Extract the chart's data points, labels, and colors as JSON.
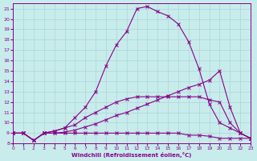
{
  "background_color": "#c8ecec",
  "grid_color": "#b0d8d8",
  "line_color": "#880088",
  "xlabel": "Windchill (Refroidissement éolien,°C)",
  "xlim": [
    0,
    23
  ],
  "ylim": [
    8,
    21.5
  ],
  "yticks": [
    8,
    9,
    10,
    11,
    12,
    13,
    14,
    15,
    16,
    17,
    18,
    19,
    20,
    21
  ],
  "xticks": [
    0,
    1,
    2,
    3,
    4,
    5,
    6,
    7,
    8,
    9,
    10,
    11,
    12,
    13,
    14,
    15,
    16,
    17,
    18,
    19,
    20,
    21,
    22,
    23
  ],
  "series": [
    {
      "x": [
        0,
        1,
        2,
        3,
        4,
        5,
        6,
        7,
        8,
        9,
        10,
        11,
        12,
        13,
        14,
        15,
        16,
        17,
        18,
        19,
        20,
        21,
        22,
        23
      ],
      "y": [
        9.0,
        9.0,
        8.3,
        9.0,
        9.0,
        9.0,
        9.0,
        9.0,
        9.0,
        9.0,
        9.0,
        9.0,
        9.0,
        9.0,
        9.0,
        9.0,
        9.0,
        8.8,
        8.8,
        8.7,
        8.5,
        8.5,
        8.5,
        8.5
      ],
      "marker": "x",
      "markersize": 2.5,
      "linewidth": 0.8,
      "linestyle": "-"
    },
    {
      "x": [
        0,
        1,
        2,
        3,
        4,
        5,
        6,
        7,
        8,
        9,
        10,
        11,
        12,
        13,
        14,
        15,
        16,
        17,
        18,
        19,
        20,
        21,
        22,
        23
      ],
      "y": [
        9.0,
        9.0,
        8.3,
        9.0,
        9.0,
        9.1,
        9.3,
        9.6,
        9.9,
        10.3,
        10.7,
        11.0,
        11.4,
        11.8,
        12.2,
        12.6,
        13.0,
        13.4,
        13.7,
        14.1,
        15.0,
        11.5,
        9.0,
        8.5
      ],
      "marker": "x",
      "markersize": 2.5,
      "linewidth": 0.8,
      "linestyle": "-"
    },
    {
      "x": [
        0,
        1,
        2,
        3,
        4,
        5,
        6,
        7,
        8,
        9,
        10,
        11,
        12,
        13,
        14,
        15,
        16,
        17,
        18,
        19,
        20,
        21,
        22,
        23
      ],
      "y": [
        9.0,
        9.0,
        8.3,
        9.0,
        9.2,
        9.5,
        9.8,
        10.5,
        11.0,
        11.5,
        12.0,
        12.3,
        12.5,
        12.5,
        12.5,
        12.5,
        12.5,
        12.5,
        12.5,
        12.2,
        12.0,
        10.0,
        9.0,
        8.5
      ],
      "marker": "x",
      "markersize": 2.5,
      "linewidth": 0.8,
      "linestyle": "-"
    },
    {
      "x": [
        0,
        1,
        2,
        3,
        4,
        5,
        6,
        7,
        8,
        9,
        10,
        11,
        12,
        13,
        14,
        15,
        16,
        17,
        18,
        19,
        20,
        21,
        22,
        23
      ],
      "y": [
        9.0,
        9.0,
        8.3,
        9.0,
        9.2,
        9.5,
        10.5,
        11.5,
        13.0,
        15.5,
        17.5,
        18.8,
        21.0,
        21.2,
        20.7,
        20.3,
        19.5,
        17.8,
        15.2,
        11.8,
        10.0,
        9.5,
        9.0,
        8.5
      ],
      "marker": "x",
      "markersize": 2.5,
      "linewidth": 0.8,
      "linestyle": "-"
    }
  ]
}
